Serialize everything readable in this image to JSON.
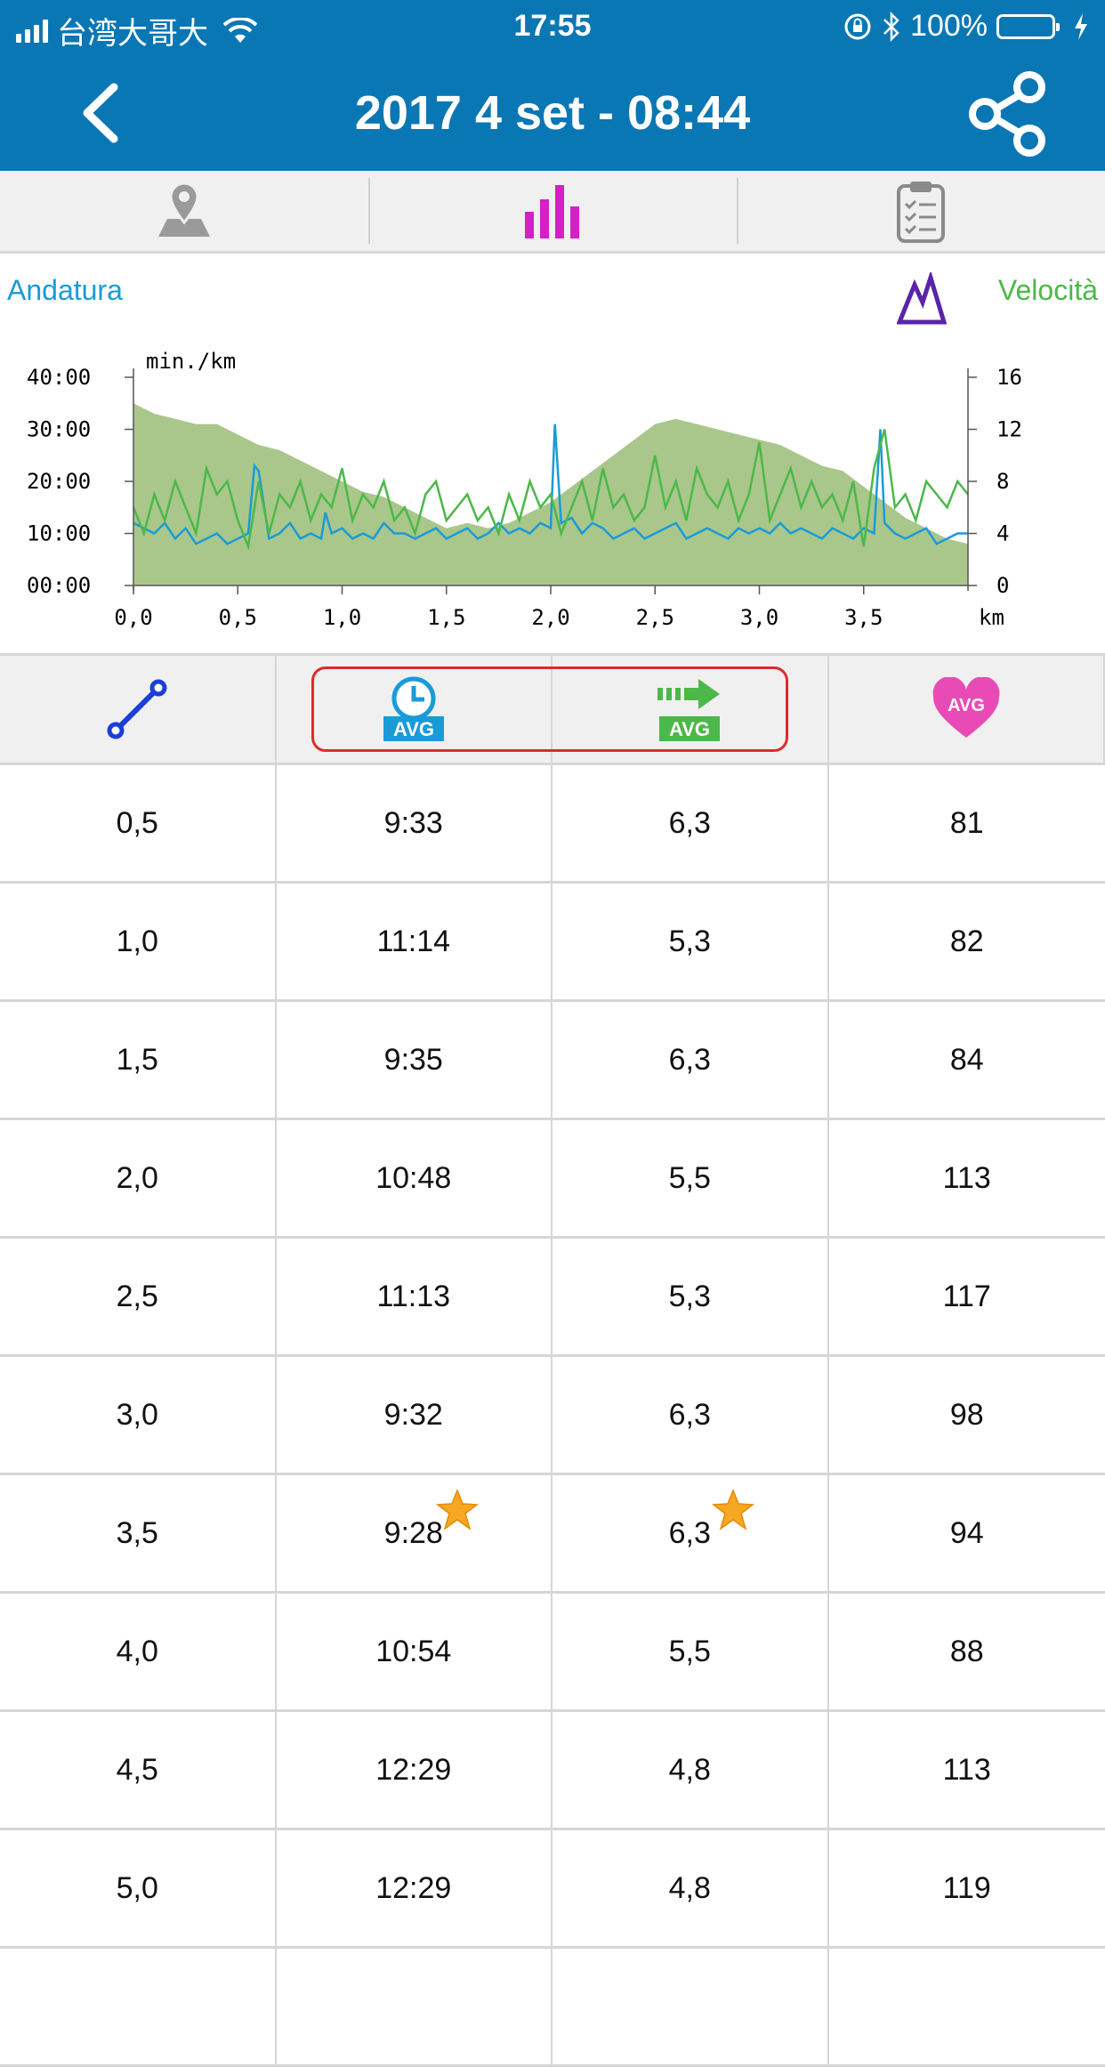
{
  "status_bar": {
    "carrier": "台湾大哥大",
    "time": "17:55",
    "battery": "100%"
  },
  "header": {
    "title": "2017 4 set - 08:44"
  },
  "tabs": [
    {
      "icon": "map-pin-icon",
      "active": false
    },
    {
      "icon": "bar-chart-icon",
      "active": true
    },
    {
      "icon": "clipboard-checklist-icon",
      "active": false
    }
  ],
  "chart_labels": {
    "left": "Andatura",
    "right": "Velocità"
  },
  "colors": {
    "header": "#0a77b5",
    "pace": "#1a9bd7",
    "speed": "#4cb849",
    "elevation": "#a9c78b",
    "active_tab": "#d61fc7",
    "highlight": "#e02a2a",
    "heart": "#e94bb6"
  },
  "chart_data": {
    "type": "line",
    "ylabel": "min./km",
    "xlabel": "km",
    "x_ticks": [
      "0,0",
      "0,5",
      "1,0",
      "1,5",
      "2,0",
      "2,5",
      "3,0",
      "3,5"
    ],
    "y_left_ticks": [
      "00:00",
      "10:00",
      "20:00",
      "30:00",
      "40:00"
    ],
    "y_right_ticks": [
      "0",
      "4",
      "8",
      "12",
      "16"
    ],
    "xlim": [
      0,
      4.0
    ],
    "ylim_left_minutes": [
      0,
      40
    ],
    "ylim_right": [
      0,
      16
    ],
    "series": [
      {
        "name": "Andatura",
        "axis": "left",
        "x": [
          0.0,
          0.05,
          0.1,
          0.15,
          0.2,
          0.25,
          0.3,
          0.35,
          0.4,
          0.45,
          0.5,
          0.55,
          0.58,
          0.6,
          0.65,
          0.7,
          0.75,
          0.8,
          0.85,
          0.9,
          0.92,
          0.95,
          1.0,
          1.05,
          1.1,
          1.15,
          1.2,
          1.25,
          1.3,
          1.35,
          1.4,
          1.45,
          1.5,
          1.55,
          1.6,
          1.65,
          1.7,
          1.75,
          1.8,
          1.85,
          1.9,
          1.95,
          2.0,
          2.02,
          2.05,
          2.1,
          2.15,
          2.2,
          2.25,
          2.3,
          2.35,
          2.4,
          2.45,
          2.5,
          2.55,
          2.6,
          2.65,
          2.7,
          2.75,
          2.8,
          2.85,
          2.9,
          2.95,
          3.0,
          3.05,
          3.1,
          3.15,
          3.2,
          3.25,
          3.3,
          3.35,
          3.4,
          3.45,
          3.5,
          3.55,
          3.58,
          3.6,
          3.65,
          3.7,
          3.75,
          3.8,
          3.85,
          3.9,
          3.95,
          4.0
        ],
        "y": [
          12,
          11,
          10,
          12,
          9,
          11,
          8,
          9,
          10,
          8,
          9,
          10,
          23,
          22,
          9,
          10,
          12,
          9,
          10,
          9,
          14,
          10,
          11,
          9,
          10,
          9,
          12,
          10,
          10,
          9,
          10,
          11,
          9,
          10,
          11,
          9,
          10,
          12,
          10,
          11,
          10,
          12,
          11,
          31,
          12,
          13,
          10,
          12,
          11,
          9,
          10,
          11,
          9,
          10,
          11,
          12,
          9,
          10,
          11,
          10,
          9,
          11,
          10,
          11,
          10,
          12,
          10,
          11,
          10,
          9,
          11,
          10,
          9,
          11,
          10,
          30,
          12,
          10,
          9,
          10,
          11,
          8,
          9,
          10,
          10
        ]
      },
      {
        "name": "Velocità",
        "axis": "right",
        "x": [
          0.0,
          0.05,
          0.1,
          0.15,
          0.2,
          0.25,
          0.3,
          0.35,
          0.4,
          0.45,
          0.5,
          0.55,
          0.6,
          0.65,
          0.7,
          0.75,
          0.8,
          0.85,
          0.9,
          0.95,
          1.0,
          1.05,
          1.1,
          1.15,
          1.2,
          1.25,
          1.3,
          1.35,
          1.4,
          1.45,
          1.5,
          1.55,
          1.6,
          1.65,
          1.7,
          1.75,
          1.8,
          1.85,
          1.9,
          1.95,
          2.0,
          2.05,
          2.1,
          2.15,
          2.2,
          2.25,
          2.3,
          2.35,
          2.4,
          2.45,
          2.5,
          2.55,
          2.6,
          2.65,
          2.7,
          2.75,
          2.8,
          2.85,
          2.9,
          2.95,
          3.0,
          3.05,
          3.1,
          3.15,
          3.2,
          3.25,
          3.3,
          3.35,
          3.4,
          3.45,
          3.5,
          3.55,
          3.6,
          3.65,
          3.7,
          3.75,
          3.8,
          3.85,
          3.9,
          3.95,
          4.0
        ],
        "y": [
          6,
          4,
          7,
          5,
          8,
          6,
          4,
          9,
          7,
          8,
          5,
          3,
          8,
          4,
          7,
          6,
          8,
          5,
          7,
          6,
          9,
          5,
          7,
          6,
          8,
          5,
          6,
          4,
          7,
          8,
          5,
          6,
          7,
          5,
          6,
          4,
          7,
          5,
          8,
          6,
          7,
          4,
          6,
          8,
          5,
          9,
          6,
          7,
          5,
          6,
          10,
          6,
          8,
          5,
          9,
          7,
          6,
          8,
          5,
          7,
          11,
          5,
          7,
          9,
          6,
          8,
          6,
          7,
          5,
          8,
          3,
          9,
          12,
          6,
          7,
          5,
          8,
          7,
          6,
          8,
          7
        ]
      }
    ],
    "elevation_area": {
      "name": "",
      "x": [
        0.0,
        0.1,
        0.2,
        0.3,
        0.4,
        0.5,
        0.6,
        0.7,
        0.8,
        0.9,
        1.0,
        1.1,
        1.2,
        1.3,
        1.4,
        1.5,
        1.6,
        1.7,
        1.8,
        1.9,
        2.0,
        2.1,
        2.2,
        2.3,
        2.4,
        2.5,
        2.6,
        2.7,
        2.8,
        2.9,
        3.0,
        3.1,
        3.2,
        3.3,
        3.4,
        3.5,
        3.6,
        3.7,
        3.8,
        3.9,
        4.0
      ],
      "y": [
        35,
        33,
        32,
        31,
        31,
        29,
        27,
        26,
        24,
        22,
        20,
        18,
        17,
        15,
        13,
        11,
        12,
        11,
        12,
        14,
        16,
        19,
        22,
        25,
        28,
        31,
        32,
        31,
        30,
        29,
        28,
        27,
        25,
        23,
        22,
        19,
        16,
        13,
        11,
        9,
        8
      ]
    }
  },
  "table": {
    "rows": [
      {
        "km": "0,5",
        "pace": "9:33",
        "speed": "6,3",
        "hr": "81",
        "star": false
      },
      {
        "km": "1,0",
        "pace": "11:14",
        "speed": "5,3",
        "hr": "82",
        "star": false
      },
      {
        "km": "1,5",
        "pace": "9:35",
        "speed": "6,3",
        "hr": "84",
        "star": false
      },
      {
        "km": "2,0",
        "pace": "10:48",
        "speed": "5,5",
        "hr": "113",
        "star": false
      },
      {
        "km": "2,5",
        "pace": "11:13",
        "speed": "5,3",
        "hr": "117",
        "star": false
      },
      {
        "km": "3,0",
        "pace": "9:32",
        "speed": "6,3",
        "hr": "98",
        "star": false
      },
      {
        "km": "3,5",
        "pace": "9:28",
        "speed": "6,3",
        "hr": "94",
        "star": true
      },
      {
        "km": "4,0",
        "pace": "10:54",
        "speed": "5,5",
        "hr": "88",
        "star": false
      },
      {
        "km": "4,5",
        "pace": "12:29",
        "speed": "4,8",
        "hr": "113",
        "star": false
      },
      {
        "km": "5,0",
        "pace": "12:29",
        "speed": "4,8",
        "hr": "119",
        "star": false
      },
      {
        "km": "",
        "pace": "",
        "speed": "",
        "hr": "",
        "star": false
      }
    ],
    "header_icons": [
      "distance-line-icon",
      "avg-time-clock-icon",
      "avg-speed-arrow-icon",
      "avg-heart-icon"
    ],
    "avg_label": "AVG"
  }
}
